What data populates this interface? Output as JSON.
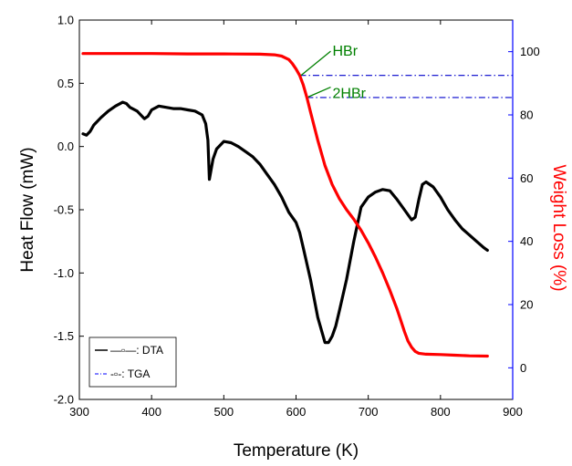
{
  "chart_data": {
    "type": "line",
    "xlabel": "Temperature (K)",
    "ylabel_left": "Heat Flow (mW)",
    "ylabel_right": "Weight Loss (%)",
    "xlim": [
      300,
      900
    ],
    "ylim_left": [
      -2.0,
      1.0
    ],
    "ylim_right": [
      -10,
      110
    ],
    "x_ticks": [
      "300",
      "400",
      "500",
      "600",
      "700",
      "800",
      "900"
    ],
    "y_left_ticks": [
      "1.0",
      "0.5",
      "0.0",
      "-0.5",
      "-1.0",
      "-1.5",
      "-2.0"
    ],
    "y_right_ticks": [
      "100",
      "80",
      "60",
      "40",
      "20",
      "0"
    ],
    "grid": false,
    "legend_position": "bottom-left",
    "colors": {
      "dta": "#000000",
      "tga": "#ff0000",
      "right_axis": "#0000ff",
      "guide_lines": "#0000cc",
      "annotation": "#008000"
    },
    "legend": [
      {
        "label": "—▫—: DTA",
        "color": "#000000"
      },
      {
        "label": "-▫-: TGA",
        "color": "#0000ff"
      }
    ],
    "annotations": [
      {
        "text": "HBr",
        "x": 648,
        "y_right": 99
      },
      {
        "text": "2HBr",
        "x": 648,
        "y_right": 88
      }
    ],
    "guide_lines_y_right": [
      92.5,
      85.5
    ],
    "series": [
      {
        "name": "DTA",
        "axis": "left",
        "x": [
          305,
          310,
          315,
          320,
          330,
          340,
          350,
          360,
          365,
          370,
          380,
          390,
          395,
          400,
          410,
          420,
          430,
          440,
          450,
          460,
          470,
          475,
          478,
          480,
          485,
          490,
          500,
          510,
          520,
          530,
          540,
          550,
          560,
          570,
          580,
          590,
          600,
          605,
          610,
          620,
          630,
          640,
          645,
          650,
          655,
          660,
          670,
          680,
          690,
          700,
          710,
          720,
          730,
          740,
          750,
          760,
          765,
          770,
          775,
          780,
          790,
          800,
          810,
          820,
          830,
          840,
          850,
          860,
          865
        ],
        "y": [
          0.1,
          0.09,
          0.12,
          0.17,
          0.23,
          0.28,
          0.32,
          0.35,
          0.34,
          0.31,
          0.28,
          0.22,
          0.24,
          0.29,
          0.32,
          0.31,
          0.3,
          0.3,
          0.29,
          0.28,
          0.25,
          0.18,
          0.05,
          -0.26,
          -0.1,
          -0.02,
          0.04,
          0.03,
          0.0,
          -0.04,
          -0.08,
          -0.14,
          -0.22,
          -0.3,
          -0.4,
          -0.52,
          -0.6,
          -0.68,
          -0.8,
          -1.05,
          -1.35,
          -1.55,
          -1.55,
          -1.5,
          -1.42,
          -1.3,
          -1.05,
          -0.75,
          -0.48,
          -0.4,
          -0.36,
          -0.34,
          -0.35,
          -0.42,
          -0.5,
          -0.58,
          -0.56,
          -0.42,
          -0.3,
          -0.28,
          -0.32,
          -0.4,
          -0.5,
          -0.58,
          -0.65,
          -0.7,
          -0.75,
          -0.8,
          -0.82
        ]
      },
      {
        "name": "TGA",
        "axis": "right",
        "x": [
          305,
          350,
          400,
          450,
          500,
          550,
          570,
          580,
          590,
          595,
          600,
          605,
          610,
          615,
          620,
          625,
          630,
          640,
          650,
          660,
          670,
          680,
          690,
          700,
          710,
          720,
          730,
          740,
          745,
          750,
          755,
          760,
          765,
          770,
          780,
          800,
          820,
          840,
          865
        ],
        "y": [
          99.4,
          99.4,
          99.4,
          99.3,
          99.3,
          99.2,
          99.0,
          98.6,
          97.5,
          96.2,
          94.5,
          92.5,
          89.5,
          85.5,
          81.0,
          76.5,
          72.0,
          64.0,
          58.0,
          53.5,
          50.0,
          47.0,
          43.5,
          39.5,
          35.0,
          30.0,
          24.5,
          18.5,
          15.0,
          11.5,
          8.5,
          6.5,
          5.2,
          4.6,
          4.3,
          4.2,
          4.0,
          3.8,
          3.7
        ]
      }
    ]
  }
}
